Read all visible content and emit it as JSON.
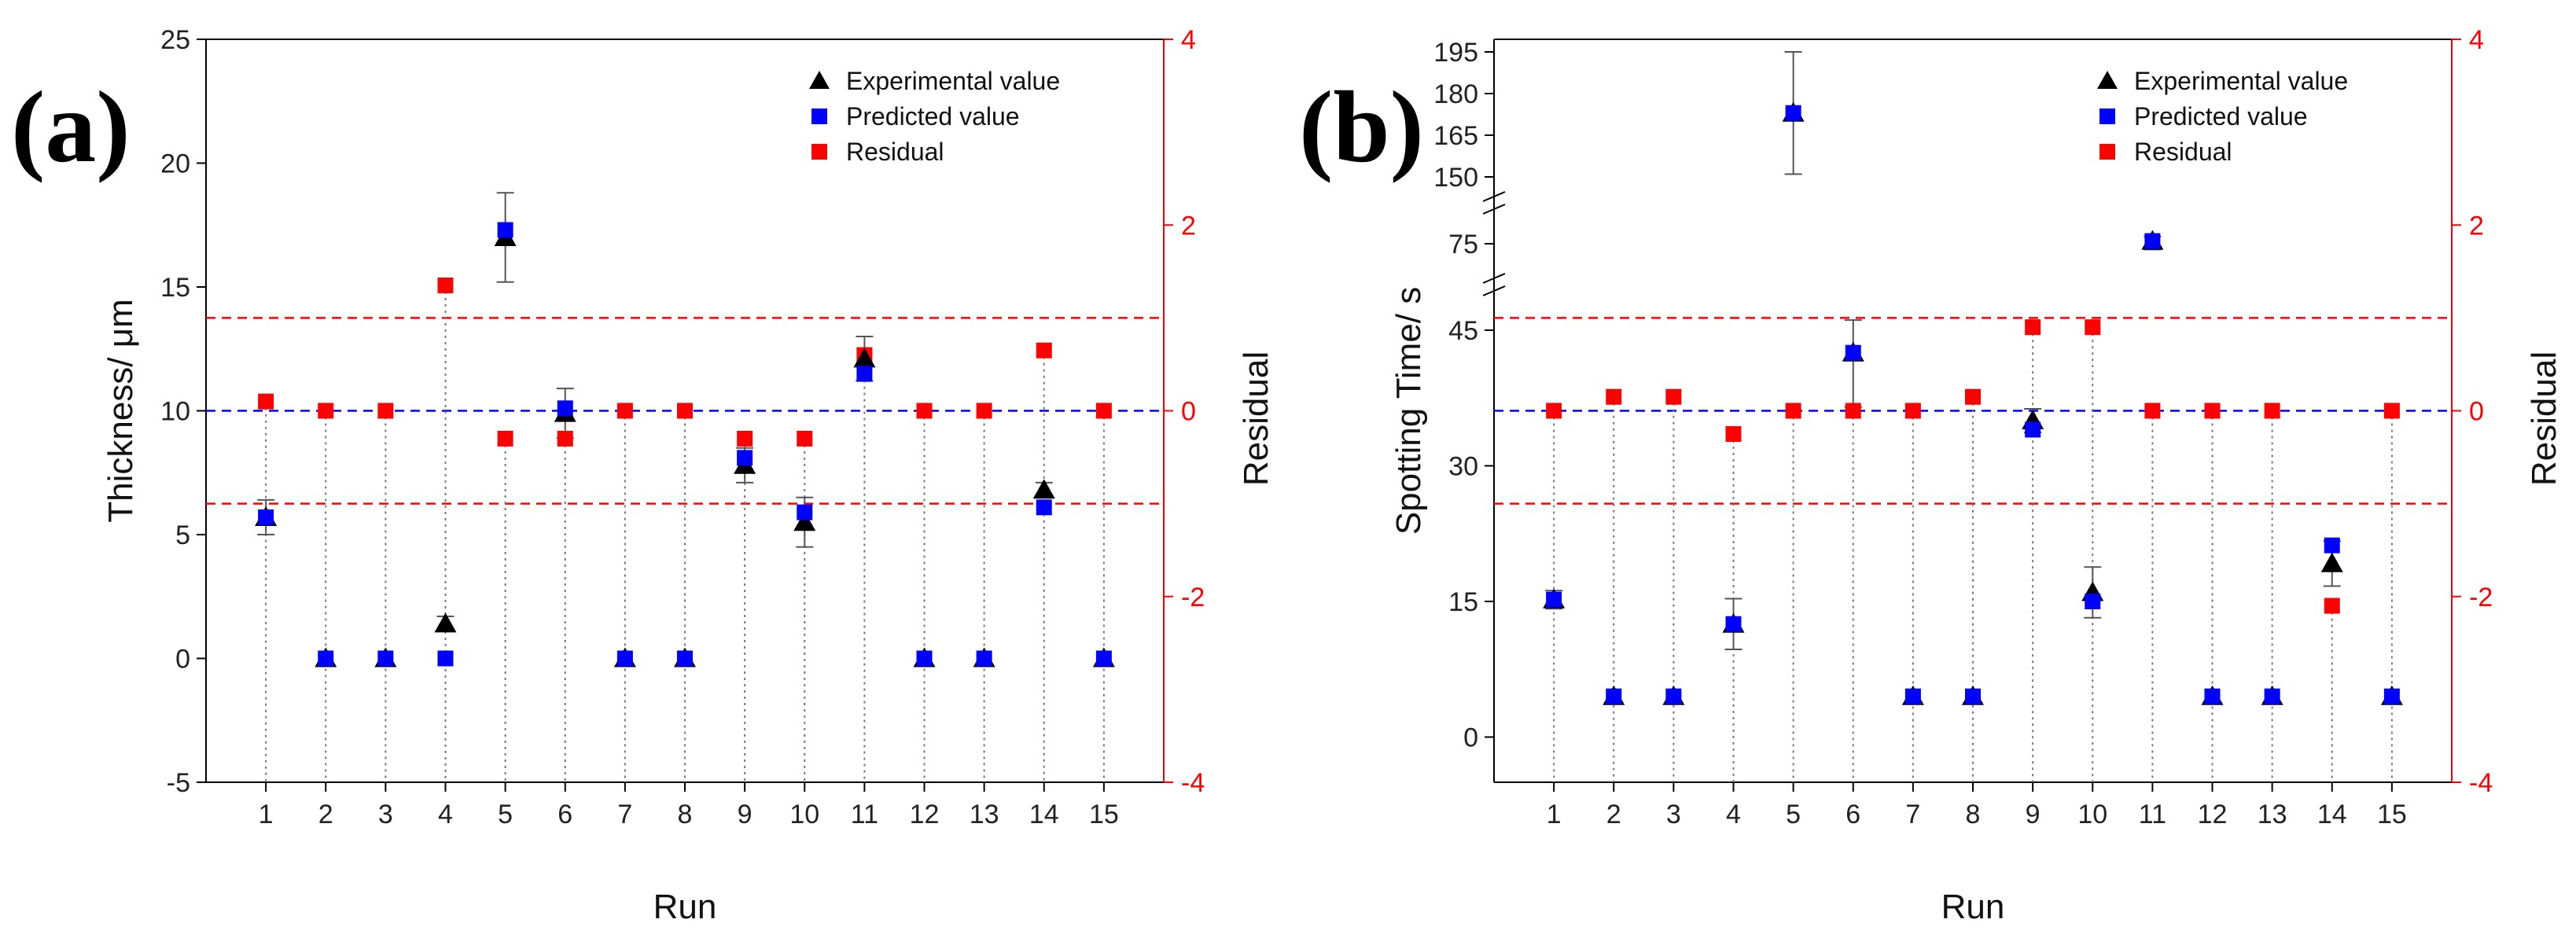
{
  "colors": {
    "experimental": "#000000",
    "predicted": "#0000ff",
    "residual": "#ff0000",
    "ref_line": "#0000ff",
    "limit_line": "#ff0000"
  },
  "chart_data": [
    {
      "type": "scatter",
      "panel_label": "(a)",
      "xlabel": "Run",
      "ylabel": "Thickness/ μm",
      "y2label": "Residual",
      "categories": [
        "1",
        "2",
        "3",
        "4",
        "5",
        "6",
        "7",
        "8",
        "9",
        "10",
        "11",
        "12",
        "13",
        "14",
        "15"
      ],
      "ylim": [
        -5,
        25
      ],
      "yticks": [
        -5,
        0,
        5,
        10,
        15,
        20,
        25
      ],
      "y2lim": [
        -4,
        4
      ],
      "y2ticks": [
        -4,
        -2,
        0,
        2,
        4
      ],
      "legend_position": "top-right",
      "series": [
        {
          "name": "Experimental value",
          "marker": "triangle",
          "axis": "left",
          "values": [
            5.7,
            0,
            0,
            1.4,
            17.0,
            9.9,
            0,
            0,
            7.8,
            5.5,
            12.1,
            0,
            0,
            6.8,
            0
          ],
          "errors": [
            0.7,
            0,
            0,
            0.3,
            1.8,
            1.0,
            0,
            0,
            0.7,
            1.0,
            0.9,
            0,
            0,
            0.3,
            0
          ]
        },
        {
          "name": "Predicted value",
          "marker": "square",
          "axis": "left",
          "values": [
            5.7,
            0,
            0,
            0,
            17.3,
            10.1,
            0,
            0,
            8.1,
            5.9,
            11.5,
            0,
            0,
            6.1,
            0
          ]
        },
        {
          "name": "Residual",
          "marker": "square",
          "axis": "right",
          "values": [
            0.1,
            0,
            0,
            1.35,
            -0.3,
            -0.3,
            0,
            0,
            -0.3,
            -0.3,
            0.6,
            0,
            0,
            0.65,
            0
          ]
        }
      ],
      "reference_lines": {
        "center": 0,
        "limits": [
          -1,
          1
        ]
      }
    },
    {
      "type": "scatter",
      "panel_label": "(b)",
      "xlabel": "Run",
      "ylabel": "Spotting Time/ s",
      "y2label": "Residual",
      "categories": [
        "1",
        "2",
        "3",
        "4",
        "5",
        "6",
        "7",
        "8",
        "9",
        "10",
        "11",
        "12",
        "13",
        "14",
        "15"
      ],
      "ylim": [
        -5,
        195
      ],
      "yticks": [
        0,
        15,
        30,
        45,
        75,
        150,
        165,
        180,
        195
      ],
      "axis_breaks": [
        [
          45,
          75
        ],
        [
          75,
          150
        ]
      ],
      "y2lim": [
        -4,
        4
      ],
      "y2ticks": [
        -4,
        -2,
        0,
        2,
        4
      ],
      "legend_position": "top-right",
      "series": [
        {
          "name": "Experimental value",
          "marker": "triangle",
          "axis": "left",
          "values": [
            15.2,
            4.5,
            4.5,
            12.5,
            173,
            42.5,
            4.5,
            4.5,
            35.0,
            16.0,
            78,
            4.5,
            4.5,
            19.2,
            4.5
          ],
          "errors": [
            1.0,
            0,
            0,
            2.8,
            22,
            6.0,
            0,
            0,
            1.3,
            2.8,
            5.0,
            0,
            0,
            2.5,
            0
          ]
        },
        {
          "name": "Predicted value",
          "marker": "square",
          "axis": "left",
          "values": [
            15.2,
            4.5,
            4.5,
            12.5,
            173,
            42.5,
            4.5,
            4.5,
            34.0,
            15.0,
            78,
            4.5,
            4.5,
            21.2,
            4.5
          ]
        },
        {
          "name": "Residual",
          "marker": "square",
          "axis": "right",
          "values": [
            0,
            0.15,
            0.15,
            -0.25,
            0,
            0,
            0,
            0.15,
            0.9,
            0.9,
            0,
            0,
            0,
            -2.1,
            0
          ]
        }
      ],
      "reference_lines": {
        "center": 0,
        "limits": [
          -1,
          1
        ]
      }
    }
  ]
}
